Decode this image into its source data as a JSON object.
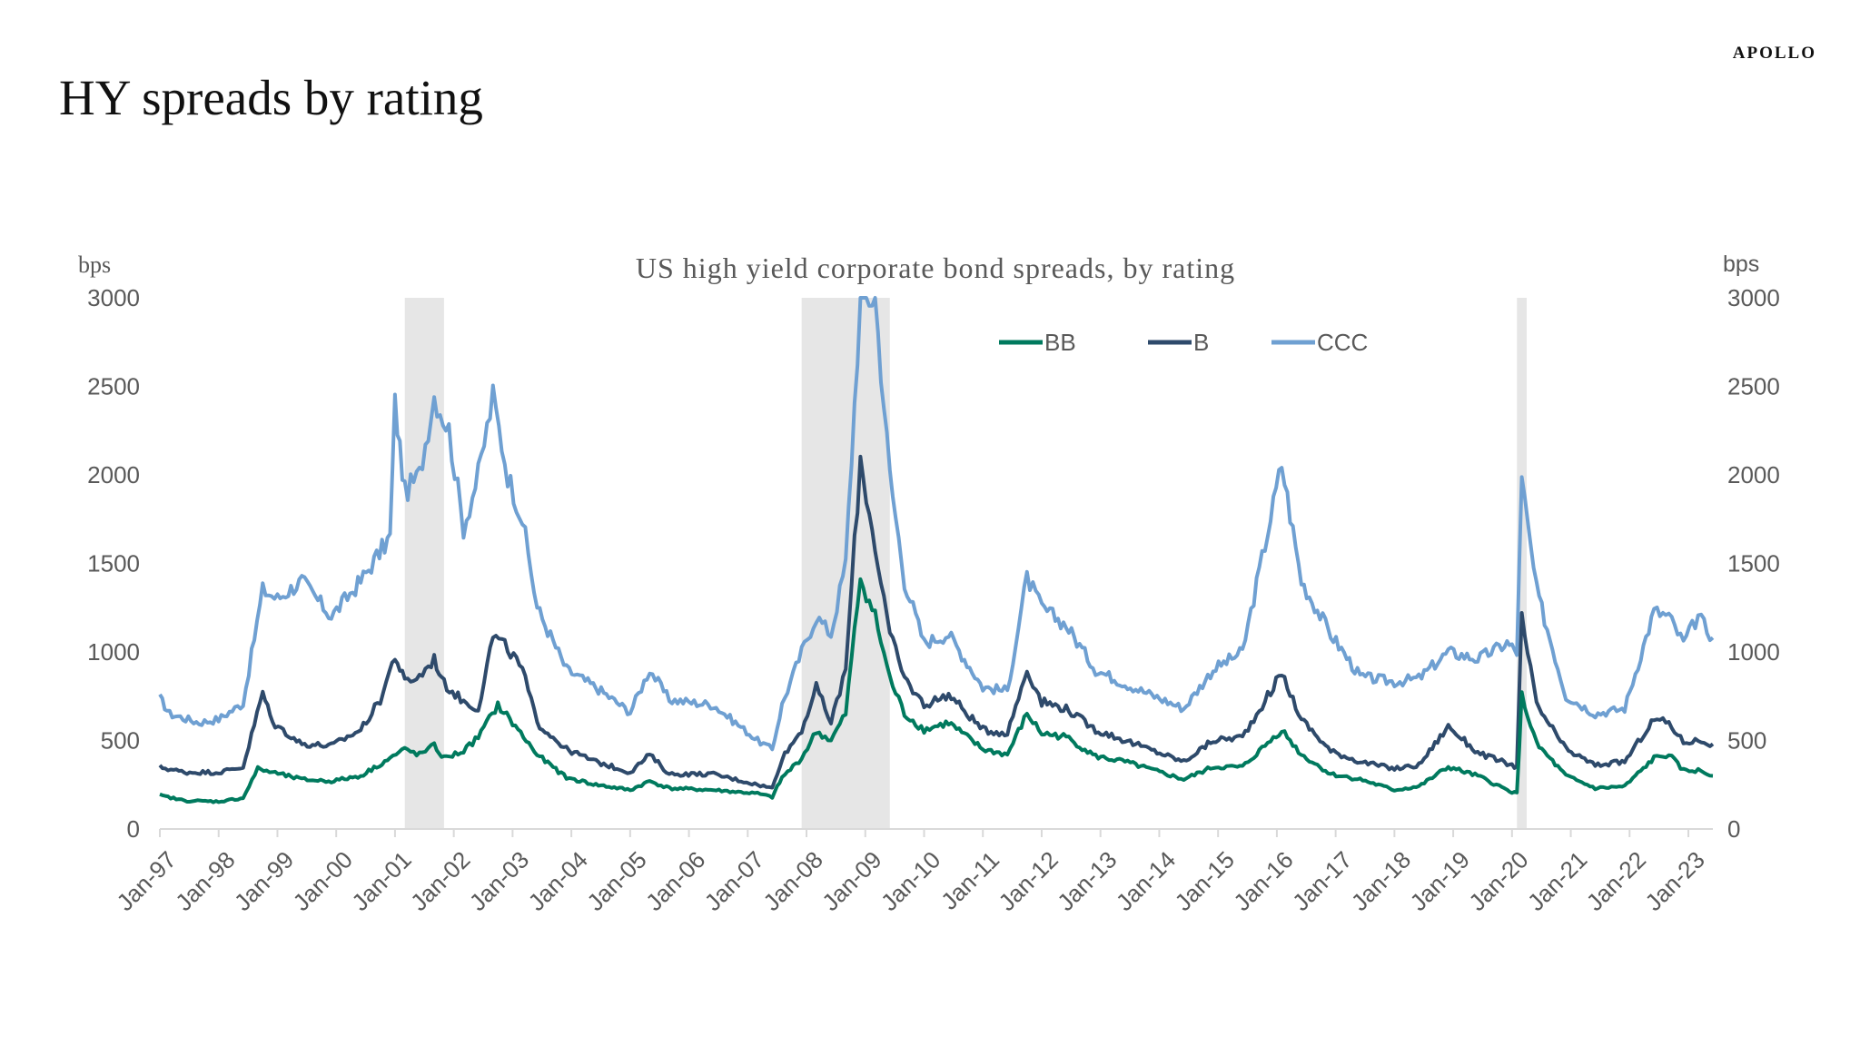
{
  "page": {
    "title": "HY spreads by rating",
    "brand": "APOLLO"
  },
  "chart_data": {
    "type": "line",
    "title": "US high yield corporate bond spreads, by rating",
    "ylabel_left": "bps",
    "ylabel_right": "bps",
    "ylim": [
      0,
      3000
    ],
    "yticks": [
      0,
      500,
      1000,
      1500,
      2000,
      2500,
      3000
    ],
    "xlim": [
      "1997-01",
      "2023-06"
    ],
    "xticks": [
      "Jan-97",
      "Jan-98",
      "Jan-99",
      "Jan-00",
      "Jan-01",
      "Jan-02",
      "Jan-03",
      "Jan-04",
      "Jan-05",
      "Jan-06",
      "Jan-07",
      "Jan-08",
      "Jan-09",
      "Jan-10",
      "Jan-11",
      "Jan-12",
      "Jan-13",
      "Jan-14",
      "Jan-15",
      "Jan-16",
      "Jan-17",
      "Jan-18",
      "Jan-19",
      "Jan-20",
      "Jan-21",
      "Jan-22",
      "Jan-23"
    ],
    "legend_position": "top-center",
    "recessions": [
      {
        "start": "2001-03",
        "end": "2001-11"
      },
      {
        "start": "2007-12",
        "end": "2009-06"
      },
      {
        "start": "2020-02",
        "end": "2020-04"
      }
    ],
    "series": [
      {
        "name": "BB",
        "color": "#007A5E",
        "points": [
          [
            "1997-01",
            190
          ],
          [
            "1997-06",
            160
          ],
          [
            "1998-01",
            155
          ],
          [
            "1998-06",
            175
          ],
          [
            "1998-09",
            340
          ],
          [
            "1998-12",
            320
          ],
          [
            "1999-06",
            280
          ],
          [
            "1999-12",
            270
          ],
          [
            "2000-06",
            300
          ],
          [
            "2000-12",
            400
          ],
          [
            "2001-03",
            450
          ],
          [
            "2001-06",
            420
          ],
          [
            "2001-09",
            470
          ],
          [
            "2001-11",
            400
          ],
          [
            "2002-03",
            440
          ],
          [
            "2002-06",
            520
          ],
          [
            "2002-10",
            700
          ],
          [
            "2003-01",
            600
          ],
          [
            "2003-06",
            420
          ],
          [
            "2003-12",
            290
          ],
          [
            "2004-06",
            250
          ],
          [
            "2005-01",
            220
          ],
          [
            "2005-05",
            270
          ],
          [
            "2005-09",
            230
          ],
          [
            "2006-06",
            220
          ],
          [
            "2007-03",
            200
          ],
          [
            "2007-06",
            180
          ],
          [
            "2007-08",
            290
          ],
          [
            "2007-12",
            400
          ],
          [
            "2008-03",
            550
          ],
          [
            "2008-06",
            500
          ],
          [
            "2008-09",
            650
          ],
          [
            "2008-12",
            1420
          ],
          [
            "2009-03",
            1200
          ],
          [
            "2009-06",
            850
          ],
          [
            "2009-09",
            650
          ],
          [
            "2010-01",
            560
          ],
          [
            "2010-06",
            600
          ],
          [
            "2011-01",
            450
          ],
          [
            "2011-06",
            420
          ],
          [
            "2011-10",
            650
          ],
          [
            "2012-01",
            540
          ],
          [
            "2012-06",
            520
          ],
          [
            "2012-12",
            410
          ],
          [
            "2013-06",
            380
          ],
          [
            "2014-06",
            280
          ],
          [
            "2014-12",
            350
          ],
          [
            "2015-06",
            350
          ],
          [
            "2016-02",
            560
          ],
          [
            "2016-06",
            420
          ],
          [
            "2016-12",
            310
          ],
          [
            "2017-06",
            280
          ],
          [
            "2018-01",
            220
          ],
          [
            "2018-06",
            240
          ],
          [
            "2018-12",
            350
          ],
          [
            "2019-06",
            300
          ],
          [
            "2019-12",
            220
          ],
          [
            "2020-02",
            200
          ],
          [
            "2020-03",
            750
          ],
          [
            "2020-06",
            480
          ],
          [
            "2020-12",
            300
          ],
          [
            "2021-06",
            230
          ],
          [
            "2021-12",
            240
          ],
          [
            "2022-06",
            400
          ],
          [
            "2022-09",
            420
          ],
          [
            "2022-12",
            330
          ],
          [
            "2023-03",
            330
          ],
          [
            "2023-06",
            300
          ]
        ]
      },
      {
        "name": "B",
        "color": "#2E4A6B",
        "points": [
          [
            "1997-01",
            350
          ],
          [
            "1997-06",
            320
          ],
          [
            "1998-01",
            320
          ],
          [
            "1998-06",
            350
          ],
          [
            "1998-10",
            770
          ],
          [
            "1998-12",
            600
          ],
          [
            "1999-06",
            480
          ],
          [
            "1999-12",
            470
          ],
          [
            "2000-06",
            560
          ],
          [
            "2000-10",
            730
          ],
          [
            "2001-01",
            980
          ],
          [
            "2001-03",
            830
          ],
          [
            "2001-06",
            860
          ],
          [
            "2001-09",
            960
          ],
          [
            "2001-11",
            820
          ],
          [
            "2002-03",
            720
          ],
          [
            "2002-06",
            680
          ],
          [
            "2002-09",
            1090
          ],
          [
            "2002-12",
            1020
          ],
          [
            "2003-03",
            900
          ],
          [
            "2003-06",
            600
          ],
          [
            "2003-12",
            450
          ],
          [
            "2004-06",
            380
          ],
          [
            "2005-01",
            320
          ],
          [
            "2005-05",
            420
          ],
          [
            "2005-09",
            310
          ],
          [
            "2006-06",
            310
          ],
          [
            "2007-03",
            250
          ],
          [
            "2007-06",
            230
          ],
          [
            "2007-08",
            400
          ],
          [
            "2007-12",
            560
          ],
          [
            "2008-03",
            800
          ],
          [
            "2008-06",
            600
          ],
          [
            "2008-09",
            900
          ],
          [
            "2008-12",
            2080
          ],
          [
            "2009-03",
            1600
          ],
          [
            "2009-06",
            1100
          ],
          [
            "2009-09",
            850
          ],
          [
            "2010-01",
            700
          ],
          [
            "2010-06",
            760
          ],
          [
            "2011-01",
            560
          ],
          [
            "2011-06",
            540
          ],
          [
            "2011-10",
            900
          ],
          [
            "2012-01",
            720
          ],
          [
            "2012-06",
            680
          ],
          [
            "2012-12",
            560
          ],
          [
            "2013-06",
            500
          ],
          [
            "2014-06",
            380
          ],
          [
            "2014-12",
            500
          ],
          [
            "2015-06",
            520
          ],
          [
            "2016-02",
            880
          ],
          [
            "2016-06",
            620
          ],
          [
            "2016-12",
            440
          ],
          [
            "2017-06",
            380
          ],
          [
            "2018-01",
            340
          ],
          [
            "2018-06",
            360
          ],
          [
            "2018-12",
            580
          ],
          [
            "2019-06",
            430
          ],
          [
            "2019-12",
            370
          ],
          [
            "2020-02",
            350
          ],
          [
            "2020-03",
            1190
          ],
          [
            "2020-06",
            700
          ],
          [
            "2020-12",
            450
          ],
          [
            "2021-06",
            360
          ],
          [
            "2021-12",
            380
          ],
          [
            "2022-06",
            620
          ],
          [
            "2022-09",
            600
          ],
          [
            "2022-12",
            490
          ],
          [
            "2023-03",
            500
          ],
          [
            "2023-06",
            480
          ]
        ]
      },
      {
        "name": "CCC",
        "color": "#6FA0D2",
        "points": [
          [
            "1997-01",
            740
          ],
          [
            "1997-03",
            650
          ],
          [
            "1997-09",
            600
          ],
          [
            "1998-01",
            620
          ],
          [
            "1998-06",
            710
          ],
          [
            "1998-10",
            1350
          ],
          [
            "1999-01",
            1300
          ],
          [
            "1999-06",
            1400
          ],
          [
            "1999-12",
            1200
          ],
          [
            "2000-06",
            1400
          ],
          [
            "2000-12",
            1650
          ],
          [
            "2001-01",
            2400
          ],
          [
            "2001-03",
            1900
          ],
          [
            "2001-06",
            2000
          ],
          [
            "2001-09",
            2450
          ],
          [
            "2001-12",
            2250
          ],
          [
            "2002-03",
            1700
          ],
          [
            "2002-06",
            2000
          ],
          [
            "2002-09",
            2440
          ],
          [
            "2002-12",
            2000
          ],
          [
            "2003-03",
            1750
          ],
          [
            "2003-06",
            1250
          ],
          [
            "2003-12",
            900
          ],
          [
            "2004-06",
            800
          ],
          [
            "2005-01",
            660
          ],
          [
            "2005-05",
            900
          ],
          [
            "2005-09",
            730
          ],
          [
            "2006-06",
            700
          ],
          [
            "2007-03",
            500
          ],
          [
            "2007-06",
            450
          ],
          [
            "2007-08",
            700
          ],
          [
            "2007-12",
            1000
          ],
          [
            "2008-03",
            1200
          ],
          [
            "2008-06",
            1100
          ],
          [
            "2008-09",
            1500
          ],
          [
            "2008-12",
            3000
          ],
          [
            "2009-03",
            3000
          ],
          [
            "2009-06",
            2000
          ],
          [
            "2009-09",
            1400
          ],
          [
            "2010-01",
            1050
          ],
          [
            "2010-06",
            1100
          ],
          [
            "2011-01",
            800
          ],
          [
            "2011-06",
            780
          ],
          [
            "2011-10",
            1420
          ],
          [
            "2012-01",
            1250
          ],
          [
            "2012-06",
            1150
          ],
          [
            "2012-12",
            900
          ],
          [
            "2013-06",
            820
          ],
          [
            "2014-06",
            680
          ],
          [
            "2014-12",
            900
          ],
          [
            "2015-06",
            1000
          ],
          [
            "2016-02",
            2060
          ],
          [
            "2016-06",
            1400
          ],
          [
            "2016-12",
            1100
          ],
          [
            "2017-06",
            860
          ],
          [
            "2018-01",
            830
          ],
          [
            "2018-06",
            850
          ],
          [
            "2018-12",
            1000
          ],
          [
            "2019-06",
            960
          ],
          [
            "2019-12",
            1050
          ],
          [
            "2020-02",
            1000
          ],
          [
            "2020-03",
            1960
          ],
          [
            "2020-06",
            1350
          ],
          [
            "2020-12",
            750
          ],
          [
            "2021-06",
            650
          ],
          [
            "2021-12",
            680
          ],
          [
            "2022-06",
            1230
          ],
          [
            "2022-09",
            1200
          ],
          [
            "2022-12",
            1050
          ],
          [
            "2023-03",
            1200
          ],
          [
            "2023-06",
            1080
          ]
        ]
      }
    ]
  }
}
